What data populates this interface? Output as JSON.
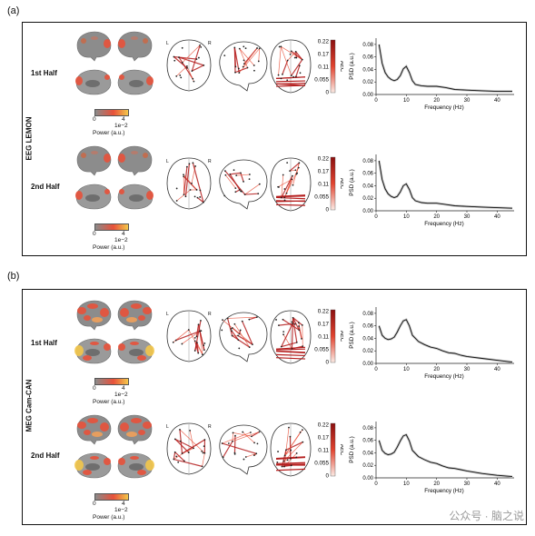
{
  "panels": [
    {
      "letter": "(a)",
      "dataset": "EEG LEMON",
      "rows": [
        {
          "label": "1st Half"
        },
        {
          "label": "2nd Half"
        }
      ]
    },
    {
      "letter": "(b)",
      "dataset": "MEG Cam-CAN",
      "rows": [
        {
          "label": "1st Half"
        },
        {
          "label": "2nd Half"
        }
      ]
    }
  ],
  "power_colorbar": {
    "tick_min": "0",
    "tick_max": "4",
    "exponent": "1e−2",
    "label": "Power (a.u.)"
  },
  "aec_colorbar": {
    "label": "AEC",
    "ticks": [
      "0.22",
      "0.17",
      "0.11",
      "0.055",
      "0"
    ]
  },
  "network_labels": {
    "left": "L",
    "right": "R"
  },
  "psd_axes": {
    "xlabel": "Frequency (Hz)",
    "ylabel": "PSD (a.u.)"
  },
  "watermark": "公众号 · 脑之说",
  "colors": {
    "high": "#b51e1e",
    "mid": "#e8513a",
    "low": "#f8d6c8",
    "brain": "#8c8c8c"
  },
  "chart_data": [
    {
      "type": "line",
      "panel": "(a)",
      "row": "1st Half",
      "xlabel": "Frequency (Hz)",
      "ylabel": "PSD (a.u.)",
      "xlim": [
        0,
        45
      ],
      "ylim": [
        0,
        0.09
      ],
      "x_ticks": [
        0,
        10,
        20,
        30,
        40
      ],
      "y_ticks": [
        0.0,
        0.02,
        0.04,
        0.06,
        0.08
      ],
      "x": [
        1,
        2,
        3,
        4,
        5,
        6,
        7,
        8,
        9,
        10,
        11,
        12,
        13,
        15,
        17,
        20,
        23,
        26,
        30,
        35,
        40,
        45
      ],
      "y": [
        0.08,
        0.05,
        0.035,
        0.028,
        0.024,
        0.022,
        0.024,
        0.03,
        0.041,
        0.045,
        0.035,
        0.022,
        0.016,
        0.014,
        0.013,
        0.013,
        0.011,
        0.008,
        0.007,
        0.006,
        0.005,
        0.005
      ]
    },
    {
      "type": "line",
      "panel": "(a)",
      "row": "2nd Half",
      "xlabel": "Frequency (Hz)",
      "ylabel": "PSD (a.u.)",
      "xlim": [
        0,
        45
      ],
      "ylim": [
        0,
        0.09
      ],
      "x_ticks": [
        0,
        10,
        20,
        30,
        40
      ],
      "y_ticks": [
        0.0,
        0.02,
        0.04,
        0.06,
        0.08
      ],
      "x": [
        1,
        2,
        3,
        4,
        5,
        6,
        7,
        8,
        9,
        10,
        11,
        12,
        13,
        15,
        17,
        20,
        23,
        26,
        30,
        35,
        40,
        45
      ],
      "y": [
        0.08,
        0.05,
        0.035,
        0.027,
        0.023,
        0.021,
        0.023,
        0.03,
        0.04,
        0.043,
        0.034,
        0.021,
        0.016,
        0.013,
        0.012,
        0.012,
        0.01,
        0.008,
        0.007,
        0.006,
        0.005,
        0.004
      ]
    },
    {
      "type": "line",
      "panel": "(b)",
      "row": "1st Half",
      "xlabel": "Frequency (Hz)",
      "ylabel": "PSD (a.u.)",
      "xlim": [
        0,
        45
      ],
      "ylim": [
        0,
        0.09
      ],
      "x_ticks": [
        0,
        10,
        20,
        30,
        40
      ],
      "y_ticks": [
        0.0,
        0.02,
        0.04,
        0.06,
        0.08
      ],
      "x": [
        1,
        2,
        3,
        4,
        5,
        6,
        7,
        8,
        9,
        10,
        11,
        12,
        14,
        16,
        18,
        20,
        22,
        24,
        26,
        28,
        30,
        35,
        40,
        45
      ],
      "y": [
        0.06,
        0.045,
        0.04,
        0.038,
        0.039,
        0.042,
        0.05,
        0.06,
        0.068,
        0.07,
        0.06,
        0.045,
        0.035,
        0.03,
        0.026,
        0.024,
        0.02,
        0.017,
        0.016,
        0.013,
        0.011,
        0.008,
        0.005,
        0.002
      ]
    },
    {
      "type": "line",
      "panel": "(b)",
      "row": "2nd Half",
      "xlabel": "Frequency (Hz)",
      "ylabel": "PSD (a.u.)",
      "xlim": [
        0,
        45
      ],
      "ylim": [
        0,
        0.09
      ],
      "x_ticks": [
        0,
        10,
        20,
        30,
        40
      ],
      "y_ticks": [
        0.0,
        0.02,
        0.04,
        0.06,
        0.08
      ],
      "x": [
        1,
        2,
        3,
        4,
        5,
        6,
        7,
        8,
        9,
        10,
        11,
        12,
        14,
        16,
        18,
        20,
        22,
        24,
        26,
        28,
        30,
        35,
        40,
        45
      ],
      "y": [
        0.06,
        0.044,
        0.039,
        0.037,
        0.038,
        0.041,
        0.049,
        0.059,
        0.067,
        0.069,
        0.059,
        0.044,
        0.034,
        0.029,
        0.025,
        0.023,
        0.019,
        0.016,
        0.015,
        0.013,
        0.011,
        0.007,
        0.004,
        0.002
      ]
    }
  ]
}
